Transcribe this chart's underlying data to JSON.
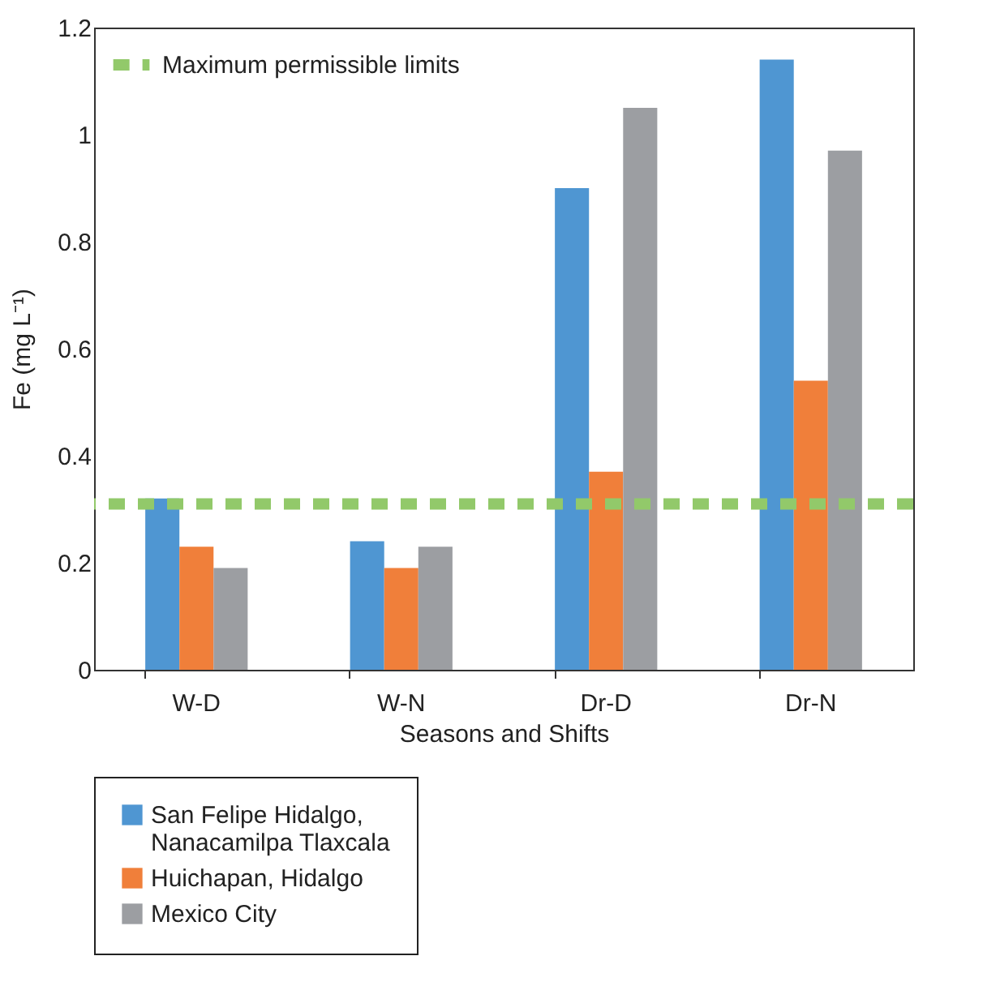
{
  "chart_data": {
    "type": "bar",
    "xlabel": "Seasons and Shifts",
    "ylabel": "Fe (mg L⁻¹)",
    "categories": [
      "W-D",
      "W-N",
      "Dr-D",
      "Dr-N"
    ],
    "series": [
      {
        "name": "San Felipe Hidalgo, Nanacamilpa Tlaxcala",
        "color": "#4f96d2",
        "values": [
          0.32,
          0.24,
          0.9,
          1.14
        ]
      },
      {
        "name": "Huichapan, Hidalgo",
        "color": "#f07f3a",
        "values": [
          0.23,
          0.19,
          0.37,
          0.54
        ]
      },
      {
        "name": "Mexico City",
        "color": "#9c9ea2",
        "values": [
          0.19,
          0.23,
          1.05,
          0.97
        ]
      }
    ],
    "ylim": [
      0,
      1.2
    ],
    "yticks": [
      0,
      0.2,
      0.4,
      0.6,
      0.8,
      1,
      1.2
    ],
    "grid": false,
    "legend": "bottom",
    "ref_lines": [
      {
        "axis": "y",
        "value": 0.31,
        "label": "Maximum permissible limits",
        "color": "#92c96a",
        "line_style": "dashed"
      }
    ]
  }
}
